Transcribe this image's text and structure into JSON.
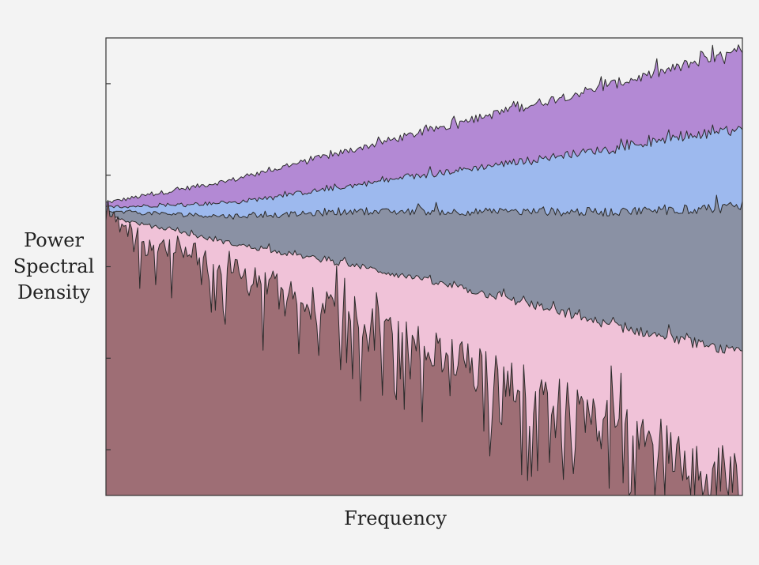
{
  "chart_data": {
    "type": "area",
    "title": "",
    "xlabel": "Frequency",
    "ylabel_lines": [
      "Power",
      "Spectral",
      "Density"
    ],
    "x_ticks": [],
    "y_tick_count": 5,
    "grid": false,
    "legend": "none",
    "x_range": [
      0,
      1
    ],
    "y_range": [
      0,
      1
    ],
    "series": [
      {
        "color": "#b389d4",
        "x": [
          0,
          0.2,
          0.4,
          0.6,
          0.8,
          1.0
        ],
        "values": [
          0.64,
          0.69,
          0.76,
          0.83,
          0.9,
          0.97
        ],
        "noise": 0.02
      },
      {
        "color": "#9db9ee",
        "x": [
          0,
          0.2,
          0.4,
          0.6,
          0.8,
          1.0
        ],
        "values": [
          0.63,
          0.64,
          0.68,
          0.72,
          0.76,
          0.8
        ],
        "noise": 0.016
      },
      {
        "color": "#8a91a4",
        "x": [
          0,
          0.2,
          0.4,
          0.6,
          0.8,
          1.0
        ],
        "values": [
          0.62,
          0.61,
          0.62,
          0.62,
          0.62,
          0.63
        ],
        "noise": 0.018
      },
      {
        "color": "#f0c2d8",
        "x": [
          0,
          0.2,
          0.4,
          0.6,
          0.8,
          1.0
        ],
        "values": [
          0.61,
          0.55,
          0.5,
          0.44,
          0.37,
          0.31
        ],
        "noise": 0.018
      },
      {
        "color": "#9e6e75",
        "x": [
          0,
          0.2,
          0.4,
          0.6,
          0.8,
          1.0
        ],
        "values": [
          0.6,
          0.49,
          0.39,
          0.27,
          0.15,
          0.03
        ],
        "noise": 0.1
      }
    ]
  }
}
